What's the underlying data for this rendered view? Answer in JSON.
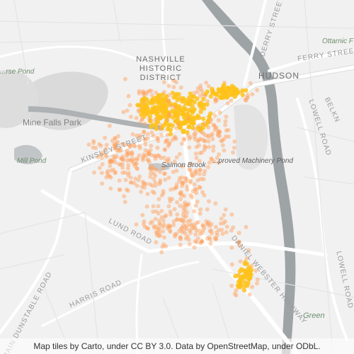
{
  "map": {
    "labels": {
      "historic_district": "NASHVILLE HISTORIC DISTRICT",
      "hudson": "HUDSON",
      "mine_falls_park": "Mine Falls Park",
      "mill_pond": "Mill Pond",
      "salmon_brook": "Salmon Brook",
      "improved_machinery_pond": "...proved Machinery Pond",
      "horse_pond": "...rse Pond",
      "ottarnic": "Ottarnic F",
      "green": "Green",
      "kinsley_street": "KINSLEY STREET",
      "lund_road": "LUND ROAD",
      "harris_road": "HARRIS ROAD",
      "main_dunstable_road": "MAIN DUNSTABLE ROAD",
      "daniel_webster_highway": "DANIEL WEBSTER HIGHWAY",
      "derry_street": "DERRY STREET",
      "ferry_street": "FERRY STREET",
      "lowell_road": "LOWELL ROAD",
      "lowell_road_2": "LOWELL ROAD",
      "belknap": "BELKN"
    },
    "attribution": "Map tiles by Carto, under CC BY 3.0. Data by OpenStreetMap, under ODbL.",
    "colors": {
      "background": "#f1f1f1",
      "road": "#ffffff",
      "road_outline": "#dcdcdc",
      "water": "#9ea3a6",
      "park": "#d8d8d8",
      "heat_low": "#ff9f5a",
      "heat_high": "#ffc21a"
    },
    "density_layer": "point-density-heat"
  }
}
